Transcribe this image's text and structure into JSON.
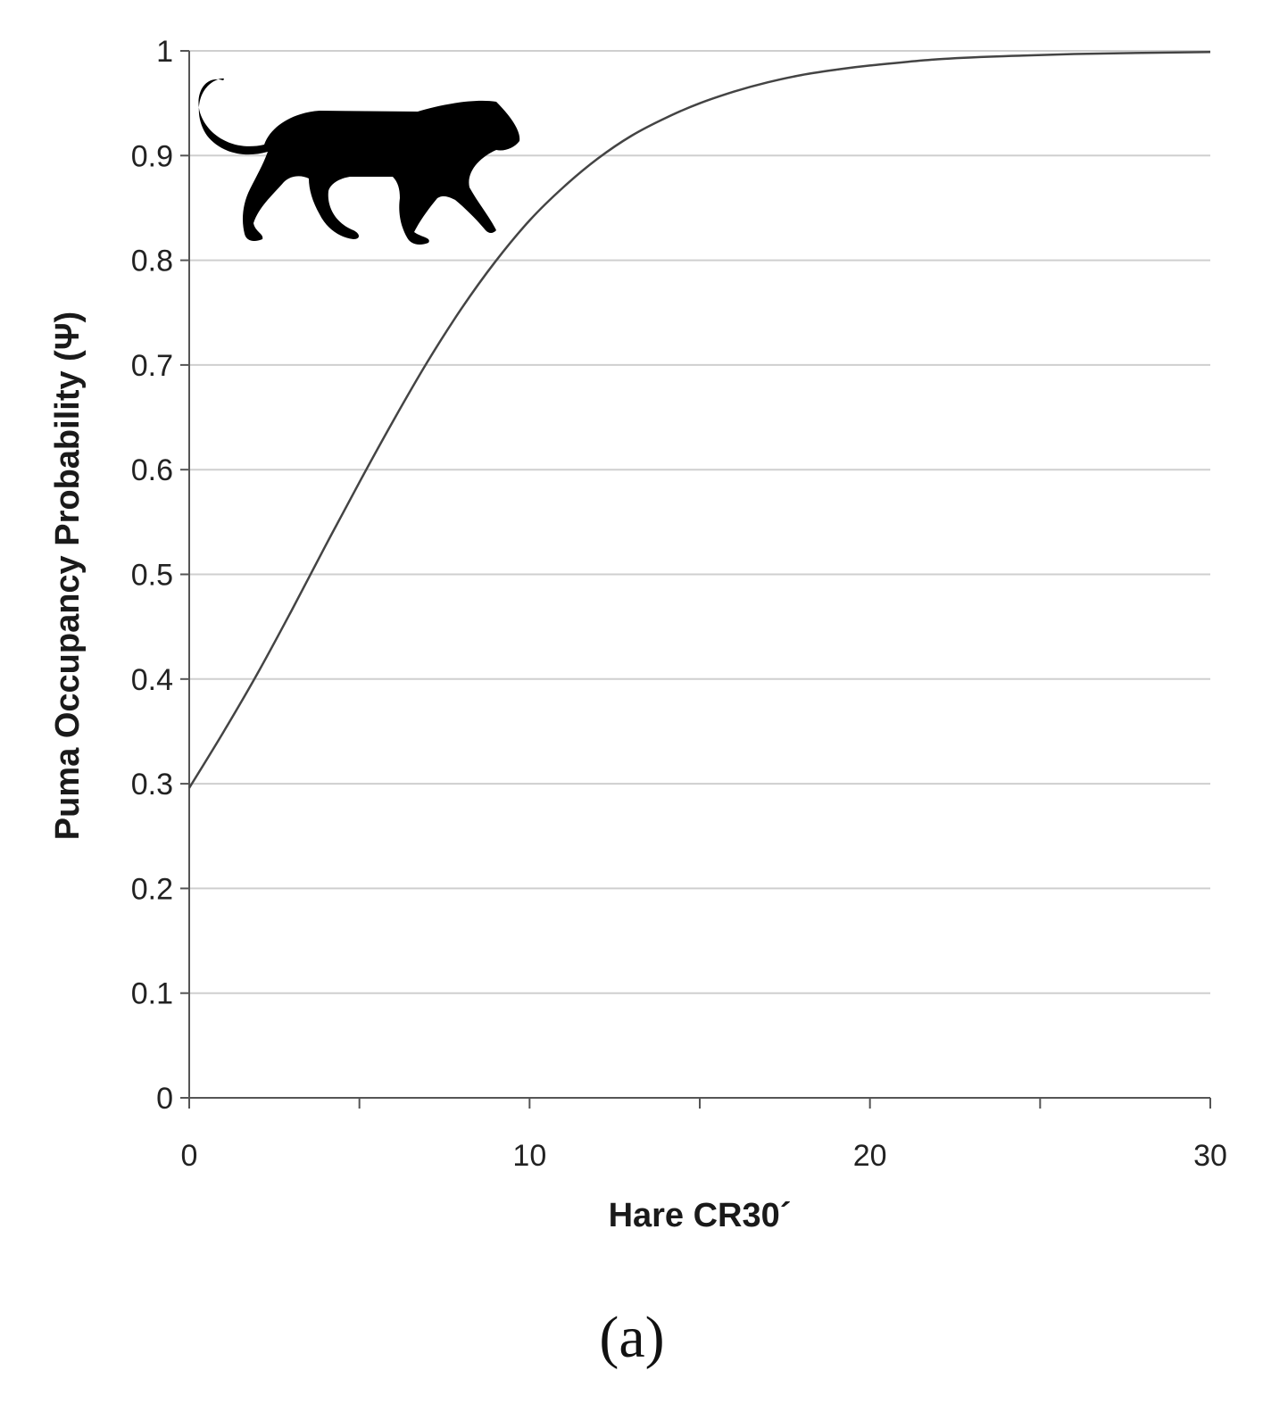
{
  "chart_data": {
    "type": "line",
    "title": "",
    "xlabel": "Hare CR30´",
    "ylabel": "Puma Occupancy Probability (Ψ)",
    "xlim": [
      0,
      30
    ],
    "ylim": [
      0,
      1
    ],
    "x_ticks": [
      0,
      10,
      20,
      30
    ],
    "x_minor_ticks": [
      5,
      15,
      25
    ],
    "y_ticks": [
      0,
      0.1,
      0.2,
      0.3,
      0.4,
      0.5,
      0.6,
      0.7,
      0.8,
      0.9,
      1
    ],
    "grid": "horizontal",
    "legend": "none",
    "series": [
      {
        "color": "#444444",
        "x": [
          0,
          1,
          2,
          3,
          4,
          5,
          6,
          7,
          8,
          9,
          10,
          11,
          12,
          13,
          14,
          15,
          16,
          17,
          18,
          19,
          20,
          22,
          24,
          26,
          28,
          30
        ],
        "y": [
          0.296,
          0.349,
          0.405,
          0.465,
          0.527,
          0.588,
          0.647,
          0.703,
          0.754,
          0.799,
          0.838,
          0.87,
          0.897,
          0.919,
          0.936,
          0.95,
          0.961,
          0.97,
          0.977,
          0.982,
          0.986,
          0.992,
          0.995,
          0.997,
          0.998,
          0.999
        ]
      }
    ],
    "panel_label": "(a)"
  },
  "decoration": {
    "icon": "puma-silhouette-icon"
  }
}
